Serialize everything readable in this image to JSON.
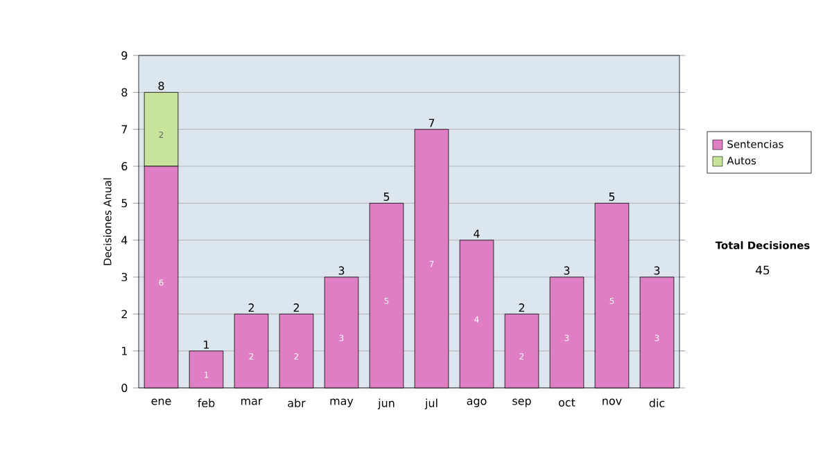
{
  "chart_data": {
    "type": "bar",
    "stacked": true,
    "ylabel": "Decisiones Anual",
    "categories": [
      "ene",
      "feb",
      "mar",
      "abr",
      "may",
      "jun",
      "jul",
      "ago",
      "sep",
      "oct",
      "nov",
      "dic"
    ],
    "series": [
      {
        "name": "Sentencias",
        "color": "#e07ec4",
        "values": [
          6,
          1,
          2,
          2,
          3,
          5,
          7,
          4,
          2,
          3,
          5,
          3
        ]
      },
      {
        "name": "Autos",
        "color": "#c8e49a",
        "values": [
          2,
          null,
          null,
          null,
          null,
          null,
          null,
          null,
          null,
          null,
          null,
          null
        ]
      }
    ],
    "data_labels": true,
    "totals": [
      "8",
      "1",
      "2",
      "2",
      "3",
      "5",
      "7",
      "4",
      "2",
      "3",
      "5",
      "3"
    ],
    "ylim": [
      0,
      9
    ],
    "yticks": [
      0,
      1,
      2,
      3,
      4,
      5,
      6,
      7,
      8,
      9
    ],
    "grid": "y",
    "legend": "right",
    "annotations": [
      "Total Decisiones",
      "45"
    ]
  }
}
